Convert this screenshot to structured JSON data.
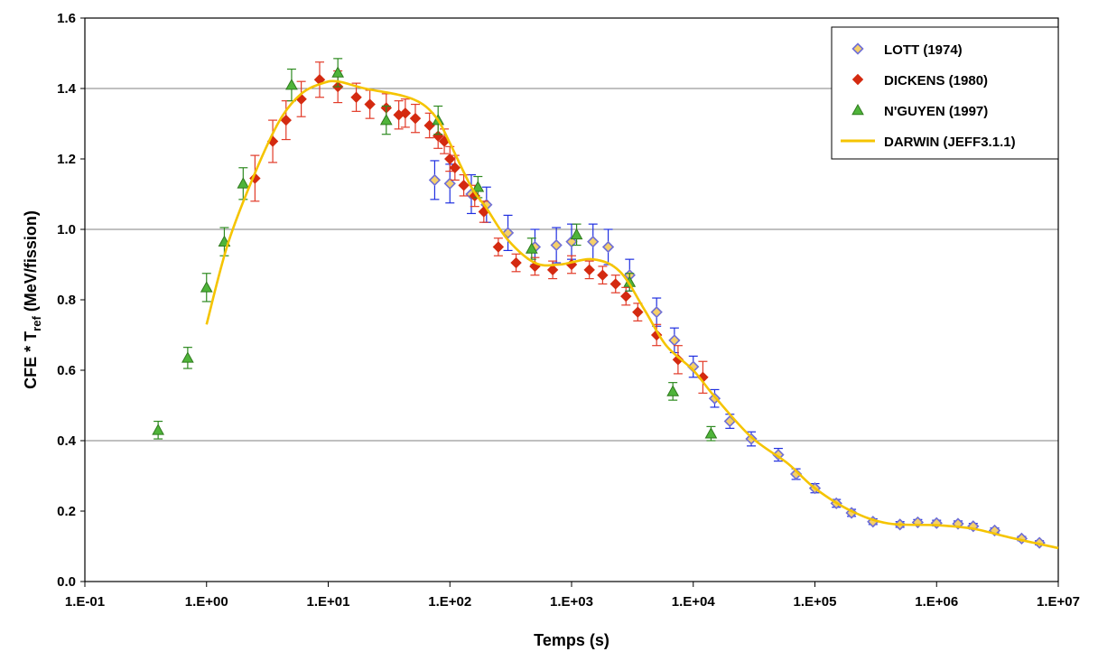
{
  "chart_data": {
    "type": "scatter",
    "title": "",
    "xlabel": "Temps (s)",
    "ylabel": {
      "main": "CFE * T",
      "subscript": "ref",
      "suffix": " (MeV/fission)"
    },
    "x_scale": "log",
    "xlim": [
      0.1,
      10000000
    ],
    "ylim": [
      0,
      1.6
    ],
    "x_ticks": [
      {
        "value": 0.1,
        "label": "1.E-01"
      },
      {
        "value": 1,
        "label": "1.E+00"
      },
      {
        "value": 10,
        "label": "1.E+01"
      },
      {
        "value": 100,
        "label": "1.E+02"
      },
      {
        "value": 1000,
        "label": "1.E+03"
      },
      {
        "value": 10000,
        "label": "1.E+04"
      },
      {
        "value": 100000,
        "label": "1.E+05"
      },
      {
        "value": 1000000,
        "label": "1.E+06"
      },
      {
        "value": 10000000,
        "label": "1.E+07"
      }
    ],
    "y_ticks": [
      {
        "value": 0.0,
        "label": "0.0"
      },
      {
        "value": 0.2,
        "label": "0.2"
      },
      {
        "value": 0.4,
        "label": "0.4"
      },
      {
        "value": 0.6,
        "label": "0.6"
      },
      {
        "value": 0.8,
        "label": "0.8"
      },
      {
        "value": 1.0,
        "label": "1.0"
      },
      {
        "value": 1.2,
        "label": "1.2"
      },
      {
        "value": 1.4,
        "label": "1.4"
      },
      {
        "value": 1.6,
        "label": "1.6"
      }
    ],
    "grid": {
      "horizontal": [
        0.4,
        1.0,
        1.4
      ]
    },
    "legend_position": "top-right",
    "series": [
      {
        "name": "LOTT (1974)",
        "marker": "diamond-open",
        "color": "#6f6fd6",
        "error_color": "#1f2fe0",
        "points": [
          {
            "x": 75,
            "y": 1.14,
            "err": 0.055
          },
          {
            "x": 100,
            "y": 1.13,
            "err": 0.055
          },
          {
            "x": 150,
            "y": 1.1,
            "err": 0.055
          },
          {
            "x": 200,
            "y": 1.07,
            "err": 0.05
          },
          {
            "x": 300,
            "y": 0.99,
            "err": 0.05
          },
          {
            "x": 500,
            "y": 0.95,
            "err": 0.05
          },
          {
            "x": 750,
            "y": 0.955,
            "err": 0.05
          },
          {
            "x": 1000,
            "y": 0.965,
            "err": 0.05
          },
          {
            "x": 1500,
            "y": 0.965,
            "err": 0.05
          },
          {
            "x": 2000,
            "y": 0.95,
            "err": 0.05
          },
          {
            "x": 3000,
            "y": 0.87,
            "err": 0.045
          },
          {
            "x": 5000,
            "y": 0.765,
            "err": 0.04
          },
          {
            "x": 7000,
            "y": 0.685,
            "err": 0.035
          },
          {
            "x": 10000,
            "y": 0.61,
            "err": 0.03
          },
          {
            "x": 15000,
            "y": 0.52,
            "err": 0.025
          },
          {
            "x": 20000,
            "y": 0.455,
            "err": 0.02
          },
          {
            "x": 30000,
            "y": 0.405,
            "err": 0.02
          },
          {
            "x": 50000,
            "y": 0.36,
            "err": 0.018
          },
          {
            "x": 70000,
            "y": 0.305,
            "err": 0.015
          },
          {
            "x": 100000,
            "y": 0.265,
            "err": 0.013
          },
          {
            "x": 150000,
            "y": 0.222,
            "err": 0.011
          },
          {
            "x": 200000,
            "y": 0.195,
            "err": 0.01
          },
          {
            "x": 300000,
            "y": 0.17,
            "err": 0.008
          },
          {
            "x": 500000,
            "y": 0.162,
            "err": 0.008
          },
          {
            "x": 700000,
            "y": 0.168,
            "err": 0.008
          },
          {
            "x": 1000000,
            "y": 0.166,
            "err": 0.008
          },
          {
            "x": 1500000,
            "y": 0.164,
            "err": 0.008
          },
          {
            "x": 2000000,
            "y": 0.157,
            "err": 0.008
          },
          {
            "x": 3000000,
            "y": 0.145,
            "err": 0.007
          },
          {
            "x": 5000000,
            "y": 0.122,
            "err": 0.006
          },
          {
            "x": 7000000,
            "y": 0.11,
            "err": 0.006
          }
        ]
      },
      {
        "name": "DICKENS (1980)",
        "marker": "diamond-filled",
        "color": "#d42a10",
        "error_color": "#e23a28",
        "points": [
          {
            "x": 2.5,
            "y": 1.145,
            "err": 0.065
          },
          {
            "x": 3.5,
            "y": 1.25,
            "err": 0.06
          },
          {
            "x": 4.5,
            "y": 1.31,
            "err": 0.055
          },
          {
            "x": 6,
            "y": 1.37,
            "err": 0.05
          },
          {
            "x": 8.5,
            "y": 1.425,
            "err": 0.05
          },
          {
            "x": 12,
            "y": 1.405,
            "err": 0.045
          },
          {
            "x": 17,
            "y": 1.375,
            "err": 0.04
          },
          {
            "x": 22,
            "y": 1.355,
            "err": 0.04
          },
          {
            "x": 30,
            "y": 1.345,
            "err": 0.04
          },
          {
            "x": 38,
            "y": 1.325,
            "err": 0.04
          },
          {
            "x": 43,
            "y": 1.33,
            "err": 0.04
          },
          {
            "x": 52,
            "y": 1.315,
            "err": 0.04
          },
          {
            "x": 68,
            "y": 1.295,
            "err": 0.035
          },
          {
            "x": 80,
            "y": 1.265,
            "err": 0.035
          },
          {
            "x": 90,
            "y": 1.25,
            "err": 0.035
          },
          {
            "x": 100,
            "y": 1.2,
            "err": 0.035
          },
          {
            "x": 110,
            "y": 1.175,
            "err": 0.035
          },
          {
            "x": 130,
            "y": 1.125,
            "err": 0.03
          },
          {
            "x": 160,
            "y": 1.095,
            "err": 0.03
          },
          {
            "x": 190,
            "y": 1.05,
            "err": 0.03
          },
          {
            "x": 250,
            "y": 0.95,
            "err": 0.025
          },
          {
            "x": 350,
            "y": 0.905,
            "err": 0.025
          },
          {
            "x": 500,
            "y": 0.895,
            "err": 0.025
          },
          {
            "x": 700,
            "y": 0.885,
            "err": 0.025
          },
          {
            "x": 1000,
            "y": 0.9,
            "err": 0.025
          },
          {
            "x": 1400,
            "y": 0.885,
            "err": 0.025
          },
          {
            "x": 1800,
            "y": 0.87,
            "err": 0.025
          },
          {
            "x": 2300,
            "y": 0.845,
            "err": 0.025
          },
          {
            "x": 2800,
            "y": 0.81,
            "err": 0.025
          },
          {
            "x": 3500,
            "y": 0.765,
            "err": 0.025
          },
          {
            "x": 5000,
            "y": 0.7,
            "err": 0.03
          },
          {
            "x": 7500,
            "y": 0.63,
            "err": 0.04
          },
          {
            "x": 12000,
            "y": 0.58,
            "err": 0.045
          }
        ]
      },
      {
        "name": "N'GUYEN (1997)",
        "marker": "triangle",
        "color": "#4fb43a",
        "error_color": "#2e8a20",
        "points": [
          {
            "x": 0.4,
            "y": 0.43,
            "err": 0.025
          },
          {
            "x": 0.7,
            "y": 0.635,
            "err": 0.03
          },
          {
            "x": 1.0,
            "y": 0.835,
            "err": 0.04
          },
          {
            "x": 1.4,
            "y": 0.965,
            "err": 0.04
          },
          {
            "x": 2.0,
            "y": 1.13,
            "err": 0.045
          },
          {
            "x": 5.0,
            "y": 1.41,
            "err": 0.045
          },
          {
            "x": 12,
            "y": 1.445,
            "err": 0.04
          },
          {
            "x": 30,
            "y": 1.31,
            "err": 0.04
          },
          {
            "x": 80,
            "y": 1.31,
            "err": 0.04
          },
          {
            "x": 170,
            "y": 1.12,
            "err": 0.03
          },
          {
            "x": 470,
            "y": 0.945,
            "err": 0.03
          },
          {
            "x": 1100,
            "y": 0.985,
            "err": 0.03
          },
          {
            "x": 3000,
            "y": 0.85,
            "err": 0.025
          },
          {
            "x": 6800,
            "y": 0.54,
            "err": 0.025
          },
          {
            "x": 14000,
            "y": 0.42,
            "err": 0.02
          }
        ]
      },
      {
        "name": "DARWIN (JEFF3.1.1)",
        "marker": "line",
        "color": "#f5c400",
        "points": [
          {
            "x": 1.0,
            "y": 0.73
          },
          {
            "x": 1.5,
            "y": 0.96
          },
          {
            "x": 2.5,
            "y": 1.16
          },
          {
            "x": 4.0,
            "y": 1.31
          },
          {
            "x": 6.0,
            "y": 1.385
          },
          {
            "x": 9.0,
            "y": 1.415
          },
          {
            "x": 12,
            "y": 1.42
          },
          {
            "x": 20,
            "y": 1.4
          },
          {
            "x": 40,
            "y": 1.38
          },
          {
            "x": 60,
            "y": 1.355
          },
          {
            "x": 80,
            "y": 1.31
          },
          {
            "x": 100,
            "y": 1.245
          },
          {
            "x": 150,
            "y": 1.12
          },
          {
            "x": 200,
            "y": 1.06
          },
          {
            "x": 300,
            "y": 0.97
          },
          {
            "x": 500,
            "y": 0.905
          },
          {
            "x": 800,
            "y": 0.9
          },
          {
            "x": 1500,
            "y": 0.915
          },
          {
            "x": 2500,
            "y": 0.88
          },
          {
            "x": 4000,
            "y": 0.77
          },
          {
            "x": 6000,
            "y": 0.67
          },
          {
            "x": 10000,
            "y": 0.6
          },
          {
            "x": 15000,
            "y": 0.525
          },
          {
            "x": 30000,
            "y": 0.41
          },
          {
            "x": 60000,
            "y": 0.335
          },
          {
            "x": 100000,
            "y": 0.265
          },
          {
            "x": 200000,
            "y": 0.2
          },
          {
            "x": 400000,
            "y": 0.165
          },
          {
            "x": 1000000,
            "y": 0.16
          },
          {
            "x": 2000000,
            "y": 0.15
          },
          {
            "x": 4000000,
            "y": 0.125
          },
          {
            "x": 10000000,
            "y": 0.095
          }
        ]
      }
    ]
  }
}
